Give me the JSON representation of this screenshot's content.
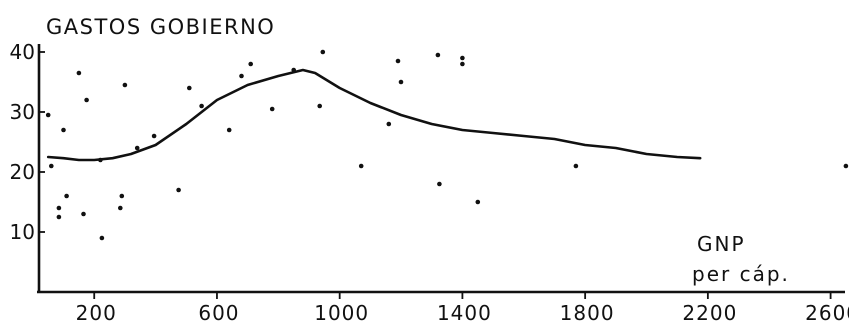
{
  "chart_data": {
    "type": "scatter",
    "title": "GASTOS GOBIERNO",
    "xlabel_lines": [
      "GNP",
      "per cáp."
    ],
    "x_ticks": [
      200,
      600,
      1000,
      1400,
      1800,
      2200,
      2600
    ],
    "y_ticks": [
      10,
      20,
      30,
      40
    ],
    "xlim": [
      20,
      2660
    ],
    "ylim": [
      0,
      40
    ],
    "grid": false,
    "series": [
      {
        "type": "scatter",
        "points": [
          {
            "x": 50,
            "y": 29.5
          },
          {
            "x": 100,
            "y": 27
          },
          {
            "x": 60,
            "y": 21
          },
          {
            "x": 110,
            "y": 16
          },
          {
            "x": 85,
            "y": 14
          },
          {
            "x": 85,
            "y": 12.5
          },
          {
            "x": 150,
            "y": 36.5
          },
          {
            "x": 175,
            "y": 32
          },
          {
            "x": 165,
            "y": 13
          },
          {
            "x": 225,
            "y": 9
          },
          {
            "x": 220,
            "y": 22
          },
          {
            "x": 300,
            "y": 34.5
          },
          {
            "x": 290,
            "y": 16
          },
          {
            "x": 285,
            "y": 14
          },
          {
            "x": 340,
            "y": 24
          },
          {
            "x": 395,
            "y": 26
          },
          {
            "x": 475,
            "y": 17
          },
          {
            "x": 510,
            "y": 34
          },
          {
            "x": 550,
            "y": 31
          },
          {
            "x": 640,
            "y": 27
          },
          {
            "x": 680,
            "y": 36
          },
          {
            "x": 710,
            "y": 38
          },
          {
            "x": 780,
            "y": 30.5
          },
          {
            "x": 850,
            "y": 37
          },
          {
            "x": 935,
            "y": 31
          },
          {
            "x": 945,
            "y": 40
          },
          {
            "x": 1070,
            "y": 21
          },
          {
            "x": 1160,
            "y": 28
          },
          {
            "x": 1190,
            "y": 38.5
          },
          {
            "x": 1200,
            "y": 35
          },
          {
            "x": 1320,
            "y": 39.5
          },
          {
            "x": 1325,
            "y": 18
          },
          {
            "x": 1400,
            "y": 39
          },
          {
            "x": 1400,
            "y": 38
          },
          {
            "x": 1450,
            "y": 15
          },
          {
            "x": 1770,
            "y": 21
          },
          {
            "x": 2650,
            "y": 21
          }
        ]
      },
      {
        "type": "line",
        "points": [
          {
            "x": 50,
            "y": 22.5
          },
          {
            "x": 100,
            "y": 22.3
          },
          {
            "x": 150,
            "y": 22
          },
          {
            "x": 200,
            "y": 22
          },
          {
            "x": 260,
            "y": 22.3
          },
          {
            "x": 320,
            "y": 23
          },
          {
            "x": 400,
            "y": 24.5
          },
          {
            "x": 500,
            "y": 28
          },
          {
            "x": 600,
            "y": 32
          },
          {
            "x": 700,
            "y": 34.5
          },
          {
            "x": 800,
            "y": 36
          },
          {
            "x": 880,
            "y": 37
          },
          {
            "x": 920,
            "y": 36.5
          },
          {
            "x": 1000,
            "y": 34
          },
          {
            "x": 1100,
            "y": 31.5
          },
          {
            "x": 1200,
            "y": 29.5
          },
          {
            "x": 1300,
            "y": 28
          },
          {
            "x": 1400,
            "y": 27
          },
          {
            "x": 1500,
            "y": 26.5
          },
          {
            "x": 1600,
            "y": 26
          },
          {
            "x": 1700,
            "y": 25.5
          },
          {
            "x": 1800,
            "y": 24.5
          },
          {
            "x": 1900,
            "y": 24
          },
          {
            "x": 2000,
            "y": 23
          },
          {
            "x": 2100,
            "y": 22.5
          },
          {
            "x": 2175,
            "y": 22.3
          }
        ]
      }
    ]
  },
  "colors": {
    "ink": "#111111",
    "background": "#ffffff"
  }
}
